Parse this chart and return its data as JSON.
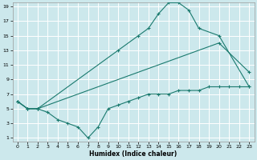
{
  "xlabel": "Humidex (Indice chaleur)",
  "bg_color": "#cce8ec",
  "grid_color": "#ffffff",
  "line_color": "#1a7a6e",
  "xlim": [
    -0.5,
    23.5
  ],
  "ylim": [
    0.5,
    19.5
  ],
  "xticks": [
    0,
    1,
    2,
    3,
    4,
    5,
    6,
    7,
    8,
    9,
    10,
    11,
    12,
    13,
    14,
    15,
    16,
    17,
    18,
    19,
    20,
    21,
    22,
    23
  ],
  "yticks": [
    1,
    3,
    5,
    7,
    9,
    11,
    13,
    15,
    17,
    19
  ],
  "line1_x": [
    0,
    1,
    2,
    10,
    12,
    13,
    14,
    15,
    16,
    17,
    18,
    20,
    23
  ],
  "line1_y": [
    6,
    5,
    5,
    13,
    15,
    16,
    18,
    19.5,
    19.5,
    18.5,
    16,
    15,
    8
  ],
  "line2_x": [
    0,
    1,
    2,
    20,
    23
  ],
  "line2_y": [
    6,
    5,
    5,
    14,
    10
  ],
  "line3_x": [
    0,
    1,
    2,
    3,
    4,
    5,
    6,
    7,
    8,
    9,
    10,
    11,
    12,
    13,
    14,
    15,
    16,
    17,
    18,
    19,
    20,
    21,
    22,
    23
  ],
  "line3_y": [
    6,
    5,
    5,
    4.5,
    3.5,
    3,
    2.5,
    1,
    2.5,
    5,
    5.5,
    6,
    6.5,
    7,
    7,
    7,
    7.5,
    7.5,
    7.5,
    8,
    8,
    8,
    8,
    8
  ]
}
